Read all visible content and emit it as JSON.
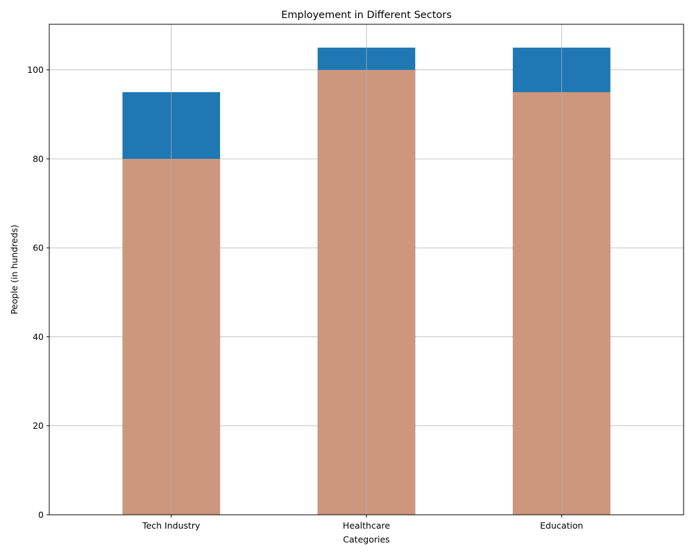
{
  "chart_data": {
    "type": "bar",
    "title": "Employement in Different Sectors",
    "xlabel": "Categories",
    "ylabel": "People (in hundreds)",
    "categories": [
      "Tech Industry",
      "Healthcare",
      "Education"
    ],
    "series": [
      {
        "values": [
          95,
          105,
          105
        ],
        "color": "#1f77b4"
      },
      {
        "values": [
          80,
          100,
          95
        ],
        "color": "#cd977e"
      }
    ],
    "ylim": [
      0,
      110.25
    ],
    "yticks": [
      0,
      20,
      40,
      60,
      80,
      100
    ],
    "grid": true,
    "grid_color": "#b0b0b0",
    "legend": "none"
  }
}
